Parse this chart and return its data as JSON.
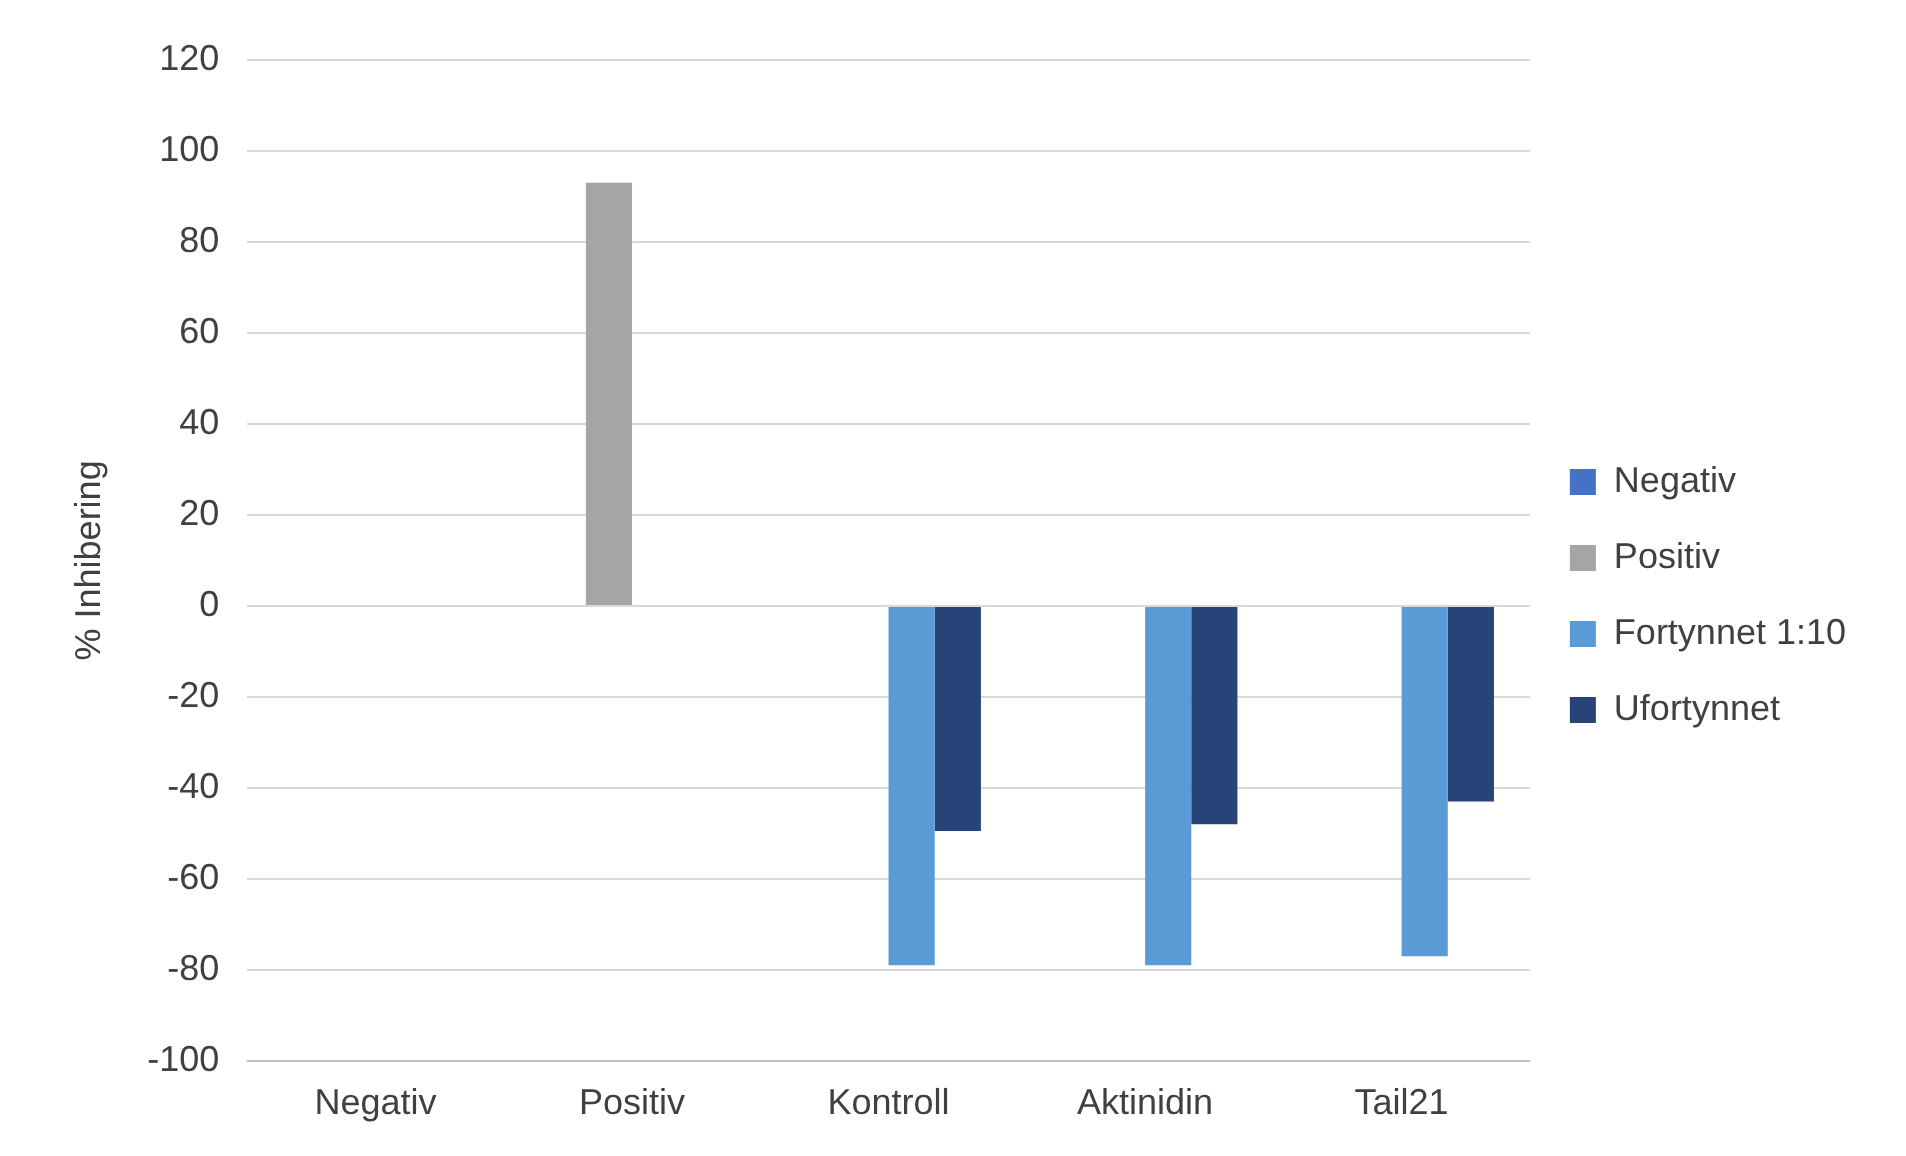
{
  "chart_data": {
    "type": "bar",
    "ylabel": "% Inhibering",
    "categories": [
      "Negativ",
      "Positiv",
      "Kontroll",
      "Aktinidin",
      "Tail21"
    ],
    "series": [
      {
        "name": "Negativ",
        "color": "#4472c4",
        "values": [
          0,
          null,
          null,
          null,
          null
        ]
      },
      {
        "name": "Positiv",
        "color": "#a5a5a5",
        "values": [
          null,
          93,
          null,
          null,
          null
        ]
      },
      {
        "name": "Fortynnet 1:10",
        "color": "#5b9bd5",
        "values": [
          null,
          null,
          -79,
          -79,
          -77
        ]
      },
      {
        "name": "Ufortynnet",
        "color": "#264478",
        "values": [
          null,
          null,
          -49.5,
          -48,
          -43
        ]
      }
    ],
    "ylim": [
      -100,
      120
    ],
    "yticks": [
      -100,
      -80,
      -60,
      -40,
      -20,
      0,
      20,
      40,
      60,
      80,
      100,
      120
    ],
    "grid": "y",
    "legend": "right"
  }
}
